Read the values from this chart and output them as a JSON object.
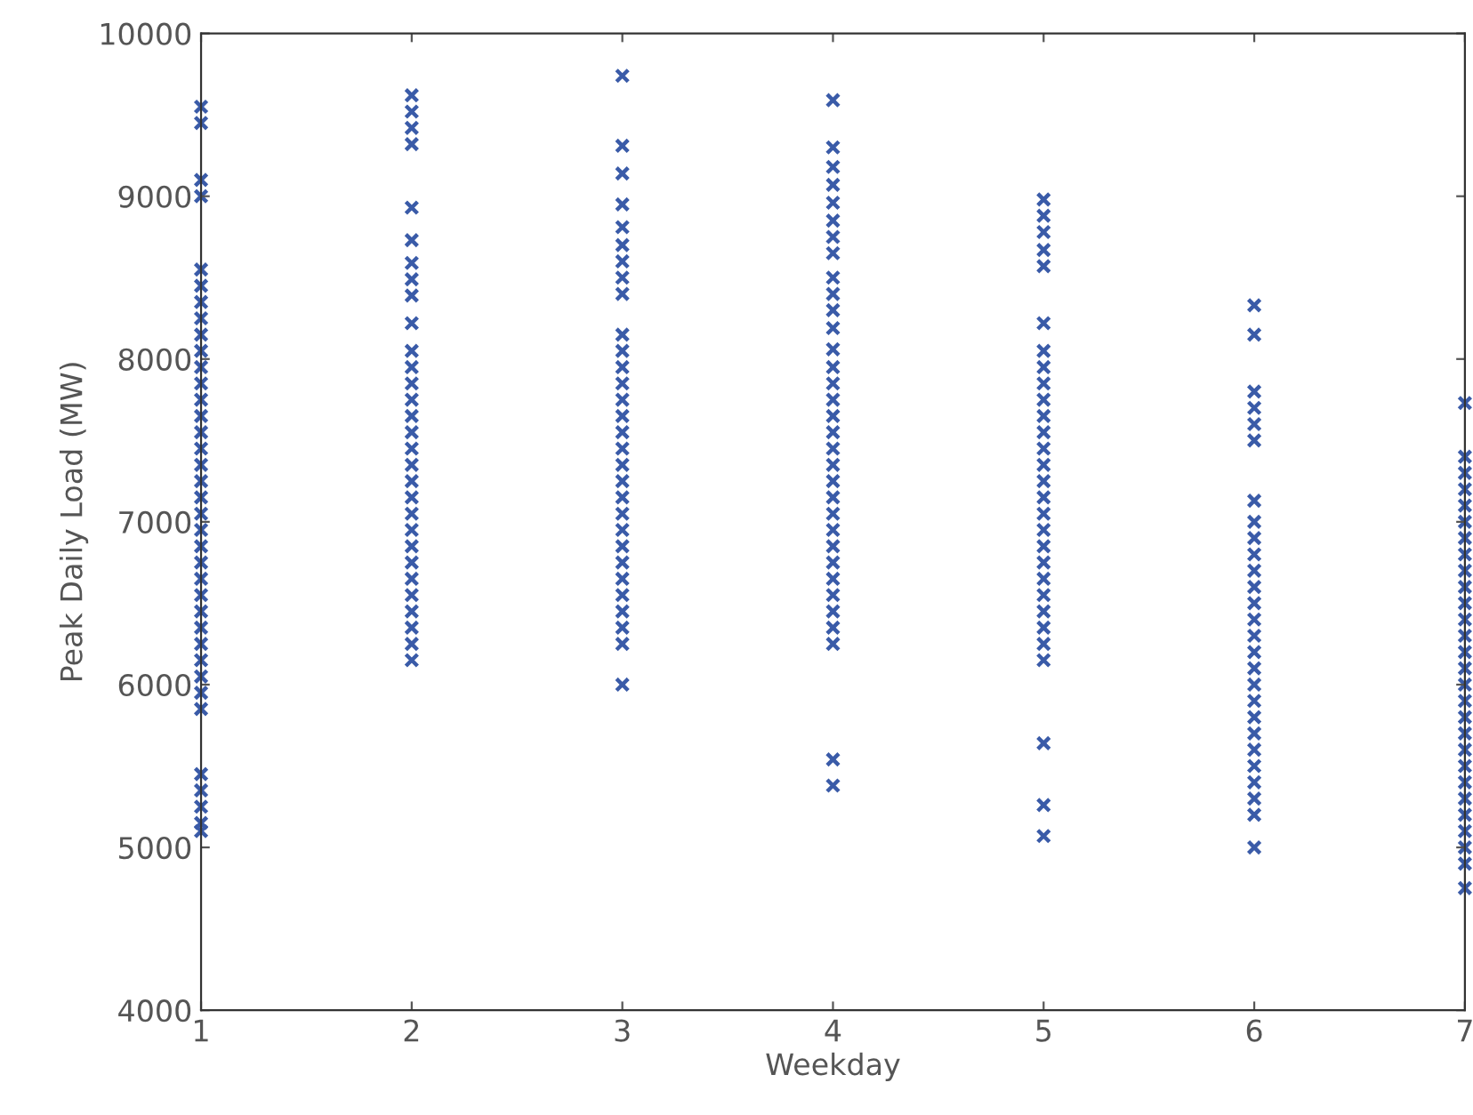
{
  "chart_data": {
    "type": "scatter",
    "xlabel": "Weekday",
    "ylabel": "Peak Daily Load (MW)",
    "xlim": [
      1,
      7
    ],
    "ylim": [
      4000,
      10000
    ],
    "xticks": [
      1,
      2,
      3,
      4,
      5,
      6,
      7
    ],
    "yticks": [
      4000,
      5000,
      6000,
      7000,
      8000,
      9000,
      10000
    ],
    "grid": false,
    "marker": "cross",
    "series": [
      {
        "color": "#3a5ba8",
        "x": [
          1,
          1,
          1,
          1,
          1,
          1,
          1,
          1,
          1,
          1,
          1,
          1,
          1,
          1,
          1,
          1,
          1,
          1,
          1,
          1,
          1,
          1,
          1,
          1,
          1,
          1,
          1,
          1,
          1,
          1,
          1,
          1,
          1,
          1,
          1,
          1,
          1
        ],
        "values": [
          9550,
          9450,
          9100,
          9000,
          8550,
          8450,
          8350,
          8250,
          8150,
          8050,
          7950,
          7850,
          7750,
          7650,
          7550,
          7450,
          7350,
          7250,
          7150,
          7050,
          6950,
          6850,
          6750,
          6650,
          6550,
          6450,
          6350,
          6250,
          6150,
          6050,
          5950,
          5850,
          5450,
          5350,
          5250,
          5150,
          5100
        ]
      },
      {
        "color": "#3a5ba8",
        "x": [
          2,
          2,
          2,
          2,
          2,
          2,
          2,
          2,
          2,
          2,
          2,
          2,
          2,
          2,
          2,
          2,
          2,
          2,
          2,
          2,
          2,
          2,
          2,
          2,
          2,
          2,
          2,
          2,
          2,
          2
        ],
        "values": [
          9620,
          9520,
          9420,
          9320,
          8930,
          8730,
          8590,
          8490,
          8390,
          8220,
          8050,
          7950,
          7850,
          7750,
          7650,
          7550,
          7450,
          7350,
          7250,
          7150,
          7050,
          6950,
          6850,
          6750,
          6650,
          6550,
          6450,
          6350,
          6250,
          6150
        ]
      },
      {
        "color": "#3a5ba8",
        "x": [
          3,
          3,
          3,
          3,
          3,
          3,
          3,
          3,
          3,
          3,
          3,
          3,
          3,
          3,
          3,
          3,
          3,
          3,
          3,
          3,
          3,
          3,
          3,
          3,
          3,
          3,
          3,
          3,
          3,
          3
        ],
        "values": [
          9740,
          9310,
          9140,
          8950,
          8810,
          8700,
          8600,
          8500,
          8400,
          8150,
          8050,
          7950,
          7850,
          7750,
          7650,
          7550,
          7450,
          7350,
          7250,
          7150,
          7050,
          6950,
          6850,
          6750,
          6650,
          6550,
          6450,
          6350,
          6250,
          6000
        ]
      },
      {
        "color": "#3a5ba8",
        "x": [
          4,
          4,
          4,
          4,
          4,
          4,
          4,
          4,
          4,
          4,
          4,
          4,
          4,
          4,
          4,
          4,
          4,
          4,
          4,
          4,
          4,
          4,
          4,
          4,
          4,
          4,
          4,
          4,
          4,
          4,
          4,
          4,
          4
        ],
        "values": [
          9590,
          9300,
          9180,
          9070,
          8960,
          8850,
          8750,
          8650,
          8500,
          8400,
          8300,
          8190,
          8060,
          7950,
          7850,
          7750,
          7650,
          7550,
          7450,
          7350,
          7250,
          7150,
          7050,
          6950,
          6850,
          6750,
          6650,
          6550,
          6450,
          6350,
          6250,
          5540,
          5380
        ]
      },
      {
        "color": "#3a5ba8",
        "x": [
          5,
          5,
          5,
          5,
          5,
          5,
          5,
          5,
          5,
          5,
          5,
          5,
          5,
          5,
          5,
          5,
          5,
          5,
          5,
          5,
          5,
          5,
          5,
          5,
          5,
          5,
          5,
          5,
          5
        ],
        "values": [
          8980,
          8880,
          8780,
          8670,
          8570,
          8220,
          8050,
          7950,
          7850,
          7750,
          7650,
          7550,
          7450,
          7350,
          7250,
          7150,
          7050,
          6950,
          6850,
          6750,
          6650,
          6550,
          6450,
          6350,
          6250,
          6150,
          5640,
          5260,
          5070
        ]
      },
      {
        "color": "#3a5ba8",
        "x": [
          6,
          6,
          6,
          6,
          6,
          6,
          6,
          6,
          6,
          6,
          6,
          6,
          6,
          6,
          6,
          6,
          6,
          6,
          6,
          6,
          6,
          6,
          6,
          6,
          6,
          6,
          6
        ],
        "values": [
          8330,
          8150,
          7800,
          7700,
          7600,
          7500,
          7130,
          7000,
          6900,
          6800,
          6700,
          6600,
          6500,
          6400,
          6300,
          6200,
          6100,
          6000,
          5900,
          5800,
          5700,
          5600,
          5500,
          5400,
          5300,
          5200,
          5000
        ]
      },
      {
        "color": "#3a5ba8",
        "x": [
          7,
          7,
          7,
          7,
          7,
          7,
          7,
          7,
          7,
          7,
          7,
          7,
          7,
          7,
          7,
          7,
          7,
          7,
          7,
          7,
          7,
          7,
          7,
          7,
          7,
          7,
          7,
          7
        ],
        "values": [
          7730,
          7400,
          7300,
          7200,
          7100,
          7000,
          6900,
          6800,
          6700,
          6600,
          6500,
          6400,
          6300,
          6200,
          6100,
          6000,
          5900,
          5800,
          5700,
          5600,
          5500,
          5400,
          5300,
          5200,
          5100,
          5000,
          4900,
          4750
        ]
      }
    ]
  }
}
